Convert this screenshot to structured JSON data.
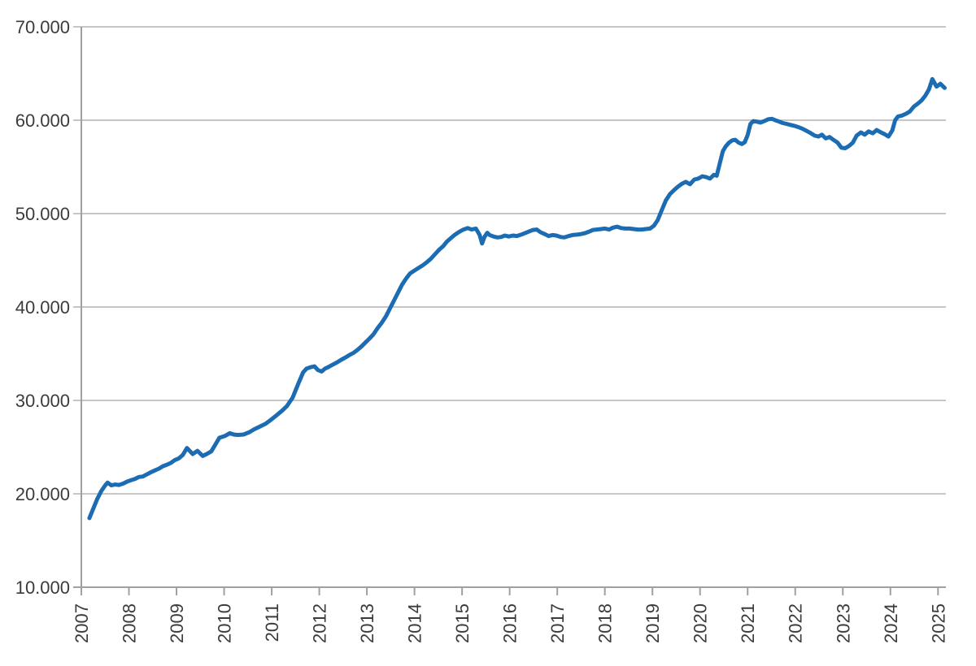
{
  "page": {
    "background": "#ffffff"
  },
  "chart_data": {
    "type": "line",
    "title": "",
    "xlabel": "",
    "ylabel": "",
    "legend": "none",
    "grid": "horizontal",
    "x_tick_values": [
      2007,
      2008,
      2009,
      2010,
      2011,
      2012,
      2013,
      2014,
      2015,
      2016,
      2017,
      2018,
      2019,
      2020,
      2021,
      2022,
      2023,
      2024,
      2025
    ],
    "x_tick_labels": [
      "2007",
      "2008",
      "2009",
      "2010",
      "2011",
      "2012",
      "2013",
      "2014",
      "2015",
      "2016",
      "2017",
      "2018",
      "2019",
      "2020",
      "2021",
      "2022",
      "2023",
      "2024",
      "2025"
    ],
    "y_tick_values": [
      10000,
      20000,
      30000,
      40000,
      50000,
      60000,
      70000
    ],
    "y_tick_labels": [
      "10.000",
      "20.000",
      "30.000",
      "40.000",
      "50.000",
      "60.000",
      "70.000"
    ],
    "xlim": [
      2007,
      2025.2
    ],
    "ylim": [
      10000,
      70000
    ],
    "line_color": "#1b6cb3",
    "grid_color": "#b3b3b3",
    "axis_color": "#a0a0a0",
    "label_color": "#3b3b3b",
    "series": [
      {
        "name": "monthly-value",
        "points": [
          [
            2007.17,
            17400
          ],
          [
            2007.25,
            18400
          ],
          [
            2007.33,
            19400
          ],
          [
            2007.42,
            20300
          ],
          [
            2007.5,
            20900
          ],
          [
            2007.55,
            21200
          ],
          [
            2007.63,
            20900
          ],
          [
            2007.71,
            21000
          ],
          [
            2007.79,
            20950
          ],
          [
            2007.88,
            21100
          ],
          [
            2007.96,
            21300
          ],
          [
            2008.04,
            21450
          ],
          [
            2008.13,
            21600
          ],
          [
            2008.21,
            21800
          ],
          [
            2008.29,
            21850
          ],
          [
            2008.38,
            22100
          ],
          [
            2008.46,
            22300
          ],
          [
            2008.54,
            22500
          ],
          [
            2008.63,
            22700
          ],
          [
            2008.71,
            22950
          ],
          [
            2008.79,
            23100
          ],
          [
            2008.88,
            23300
          ],
          [
            2008.96,
            23600
          ],
          [
            2009.05,
            23800
          ],
          [
            2009.13,
            24150
          ],
          [
            2009.22,
            24900
          ],
          [
            2009.34,
            24250
          ],
          [
            2009.44,
            24600
          ],
          [
            2009.55,
            24050
          ],
          [
            2009.65,
            24300
          ],
          [
            2009.73,
            24550
          ],
          [
            2009.82,
            25300
          ],
          [
            2009.9,
            26000
          ],
          [
            2010.02,
            26200
          ],
          [
            2010.12,
            26500
          ],
          [
            2010.2,
            26350
          ],
          [
            2010.29,
            26300
          ],
          [
            2010.41,
            26350
          ],
          [
            2010.53,
            26600
          ],
          [
            2010.63,
            26900
          ],
          [
            2010.75,
            27200
          ],
          [
            2010.87,
            27500
          ],
          [
            2010.99,
            27950
          ],
          [
            2011.1,
            28400
          ],
          [
            2011.22,
            28900
          ],
          [
            2011.32,
            29400
          ],
          [
            2011.44,
            30300
          ],
          [
            2011.56,
            31800
          ],
          [
            2011.66,
            33000
          ],
          [
            2011.73,
            33400
          ],
          [
            2011.81,
            33550
          ],
          [
            2011.9,
            33650
          ],
          [
            2011.97,
            33250
          ],
          [
            2012.05,
            33100
          ],
          [
            2012.12,
            33400
          ],
          [
            2012.2,
            33600
          ],
          [
            2012.29,
            33850
          ],
          [
            2012.38,
            34100
          ],
          [
            2012.46,
            34350
          ],
          [
            2012.55,
            34600
          ],
          [
            2012.63,
            34850
          ],
          [
            2012.72,
            35100
          ],
          [
            2012.8,
            35400
          ],
          [
            2012.89,
            35800
          ],
          [
            2012.97,
            36200
          ],
          [
            2013.06,
            36650
          ],
          [
            2013.14,
            37100
          ],
          [
            2013.22,
            37700
          ],
          [
            2013.31,
            38300
          ],
          [
            2013.4,
            39000
          ],
          [
            2013.48,
            39800
          ],
          [
            2013.57,
            40700
          ],
          [
            2013.66,
            41600
          ],
          [
            2013.74,
            42400
          ],
          [
            2013.83,
            43100
          ],
          [
            2013.91,
            43600
          ],
          [
            2014.0,
            43900
          ],
          [
            2014.09,
            44200
          ],
          [
            2014.17,
            44450
          ],
          [
            2014.26,
            44800
          ],
          [
            2014.34,
            45150
          ],
          [
            2014.43,
            45650
          ],
          [
            2014.51,
            46100
          ],
          [
            2014.6,
            46500
          ],
          [
            2014.68,
            47000
          ],
          [
            2014.77,
            47400
          ],
          [
            2014.85,
            47750
          ],
          [
            2014.94,
            48050
          ],
          [
            2015.03,
            48300
          ],
          [
            2015.12,
            48450
          ],
          [
            2015.2,
            48300
          ],
          [
            2015.29,
            48400
          ],
          [
            2015.37,
            47700
          ],
          [
            2015.42,
            46800
          ],
          [
            2015.47,
            47500
          ],
          [
            2015.53,
            47950
          ],
          [
            2015.58,
            47700
          ],
          [
            2015.66,
            47550
          ],
          [
            2015.74,
            47450
          ],
          [
            2015.82,
            47500
          ],
          [
            2015.9,
            47650
          ],
          [
            2015.98,
            47550
          ],
          [
            2016.07,
            47650
          ],
          [
            2016.15,
            47600
          ],
          [
            2016.24,
            47750
          ],
          [
            2016.32,
            47900
          ],
          [
            2016.41,
            48100
          ],
          [
            2016.49,
            48250
          ],
          [
            2016.57,
            48300
          ],
          [
            2016.65,
            48000
          ],
          [
            2016.74,
            47800
          ],
          [
            2016.82,
            47600
          ],
          [
            2016.9,
            47700
          ],
          [
            2016.98,
            47650
          ],
          [
            2017.07,
            47500
          ],
          [
            2017.15,
            47450
          ],
          [
            2017.24,
            47600
          ],
          [
            2017.32,
            47700
          ],
          [
            2017.41,
            47750
          ],
          [
            2017.49,
            47800
          ],
          [
            2017.58,
            47900
          ],
          [
            2017.66,
            48050
          ],
          [
            2017.75,
            48250
          ],
          [
            2017.83,
            48300
          ],
          [
            2017.92,
            48350
          ],
          [
            2018.0,
            48400
          ],
          [
            2018.09,
            48300
          ],
          [
            2018.17,
            48500
          ],
          [
            2018.26,
            48600
          ],
          [
            2018.34,
            48450
          ],
          [
            2018.43,
            48400
          ],
          [
            2018.52,
            48400
          ],
          [
            2018.6,
            48350
          ],
          [
            2018.69,
            48300
          ],
          [
            2018.78,
            48300
          ],
          [
            2018.86,
            48350
          ],
          [
            2018.95,
            48400
          ],
          [
            2019.03,
            48700
          ],
          [
            2019.11,
            49300
          ],
          [
            2019.19,
            50300
          ],
          [
            2019.28,
            51400
          ],
          [
            2019.37,
            52100
          ],
          [
            2019.45,
            52500
          ],
          [
            2019.54,
            52900
          ],
          [
            2019.62,
            53200
          ],
          [
            2019.7,
            53400
          ],
          [
            2019.79,
            53150
          ],
          [
            2019.88,
            53650
          ],
          [
            2019.96,
            53750
          ],
          [
            2020.05,
            54000
          ],
          [
            2020.13,
            53900
          ],
          [
            2020.21,
            53750
          ],
          [
            2020.29,
            54150
          ],
          [
            2020.35,
            54050
          ],
          [
            2020.42,
            55500
          ],
          [
            2020.48,
            56700
          ],
          [
            2020.54,
            57200
          ],
          [
            2020.61,
            57600
          ],
          [
            2020.68,
            57850
          ],
          [
            2020.74,
            57900
          ],
          [
            2020.81,
            57600
          ],
          [
            2020.88,
            57450
          ],
          [
            2020.94,
            57650
          ],
          [
            2021.0,
            58400
          ],
          [
            2021.06,
            59600
          ],
          [
            2021.12,
            59900
          ],
          [
            2021.19,
            59850
          ],
          [
            2021.27,
            59750
          ],
          [
            2021.35,
            59900
          ],
          [
            2021.43,
            60100
          ],
          [
            2021.51,
            60150
          ],
          [
            2021.58,
            60000
          ],
          [
            2021.66,
            59850
          ],
          [
            2021.74,
            59700
          ],
          [
            2021.82,
            59600
          ],
          [
            2021.9,
            59500
          ],
          [
            2021.98,
            59400
          ],
          [
            2022.07,
            59250
          ],
          [
            2022.15,
            59100
          ],
          [
            2022.24,
            58850
          ],
          [
            2022.33,
            58600
          ],
          [
            2022.41,
            58350
          ],
          [
            2022.49,
            58250
          ],
          [
            2022.56,
            58450
          ],
          [
            2022.64,
            58050
          ],
          [
            2022.72,
            58200
          ],
          [
            2022.8,
            57900
          ],
          [
            2022.89,
            57600
          ],
          [
            2022.97,
            57050
          ],
          [
            2023.05,
            57000
          ],
          [
            2023.13,
            57250
          ],
          [
            2023.21,
            57600
          ],
          [
            2023.29,
            58350
          ],
          [
            2023.38,
            58700
          ],
          [
            2023.46,
            58450
          ],
          [
            2023.54,
            58800
          ],
          [
            2023.63,
            58600
          ],
          [
            2023.71,
            58950
          ],
          [
            2023.8,
            58700
          ],
          [
            2023.88,
            58500
          ],
          [
            2023.96,
            58250
          ],
          [
            2024.04,
            58900
          ],
          [
            2024.1,
            60000
          ],
          [
            2024.16,
            60400
          ],
          [
            2024.24,
            60500
          ],
          [
            2024.33,
            60700
          ],
          [
            2024.41,
            60950
          ],
          [
            2024.49,
            61450
          ],
          [
            2024.57,
            61750
          ],
          [
            2024.65,
            62100
          ],
          [
            2024.73,
            62600
          ],
          [
            2024.81,
            63300
          ],
          [
            2024.88,
            64400
          ],
          [
            2024.97,
            63600
          ],
          [
            2025.05,
            63900
          ],
          [
            2025.14,
            63450
          ]
        ]
      }
    ]
  }
}
